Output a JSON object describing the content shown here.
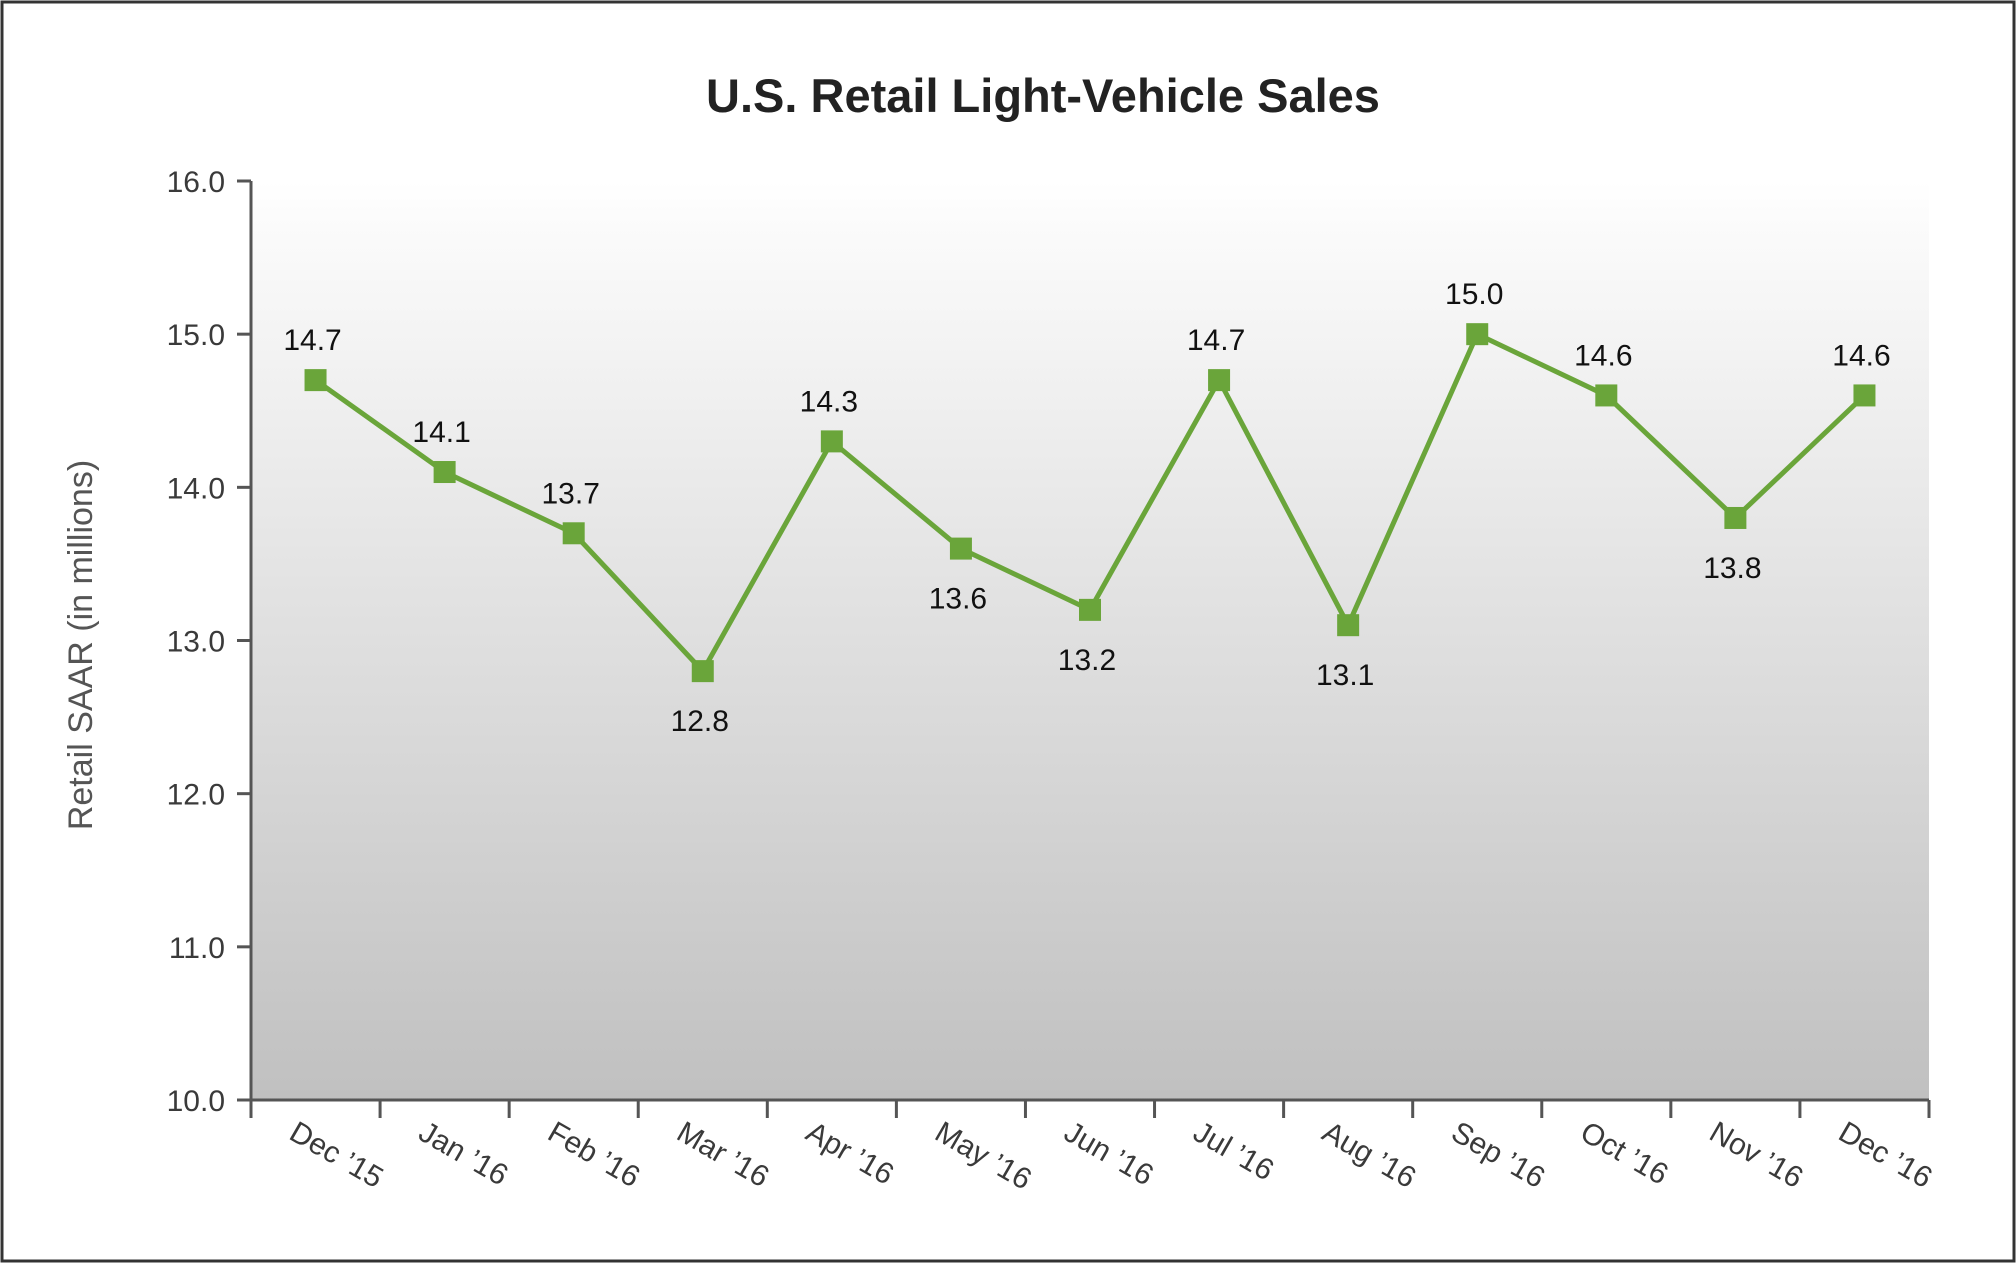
{
  "chart_data": {
    "type": "line",
    "title": "U.S. Retail Light-Vehicle Sales",
    "xlabel": "",
    "ylabel": "Retail SAAR (in millions)",
    "ylim": [
      10.0,
      16.0
    ],
    "yticks": [
      "10.0",
      "11.0",
      "12.0",
      "13.0",
      "14.0",
      "15.0",
      "16.0"
    ],
    "grid": false,
    "legend": "none",
    "categories": [
      "Dec ’15",
      "Jan ’16",
      "Feb ’16",
      "Mar ’16",
      "Apr ’16",
      "May ’16",
      "Jun ’16",
      "Jul ’16",
      "Aug ’16",
      "Sep ’16",
      "Oct ’16",
      "Nov ’16",
      "Dec ’16"
    ],
    "values": [
      14.7,
      14.1,
      13.7,
      12.8,
      14.3,
      13.6,
      13.2,
      14.7,
      13.1,
      15.0,
      14.6,
      13.8,
      14.6
    ],
    "data_labels": [
      "14.7",
      "14.1",
      "13.7",
      "12.8",
      "14.3",
      "13.6",
      "13.2",
      "14.7",
      "13.1",
      "15.0",
      "14.6",
      "13.8",
      "14.6"
    ],
    "label_positions": [
      "above",
      "above",
      "above",
      "below",
      "above",
      "below",
      "below",
      "above",
      "below",
      "above",
      "above",
      "below",
      "above"
    ],
    "colors": {
      "series": "#6aa53a",
      "background_top": "#ffffff",
      "background_bottom": "#c0c0c0",
      "axis": "#555555"
    }
  }
}
